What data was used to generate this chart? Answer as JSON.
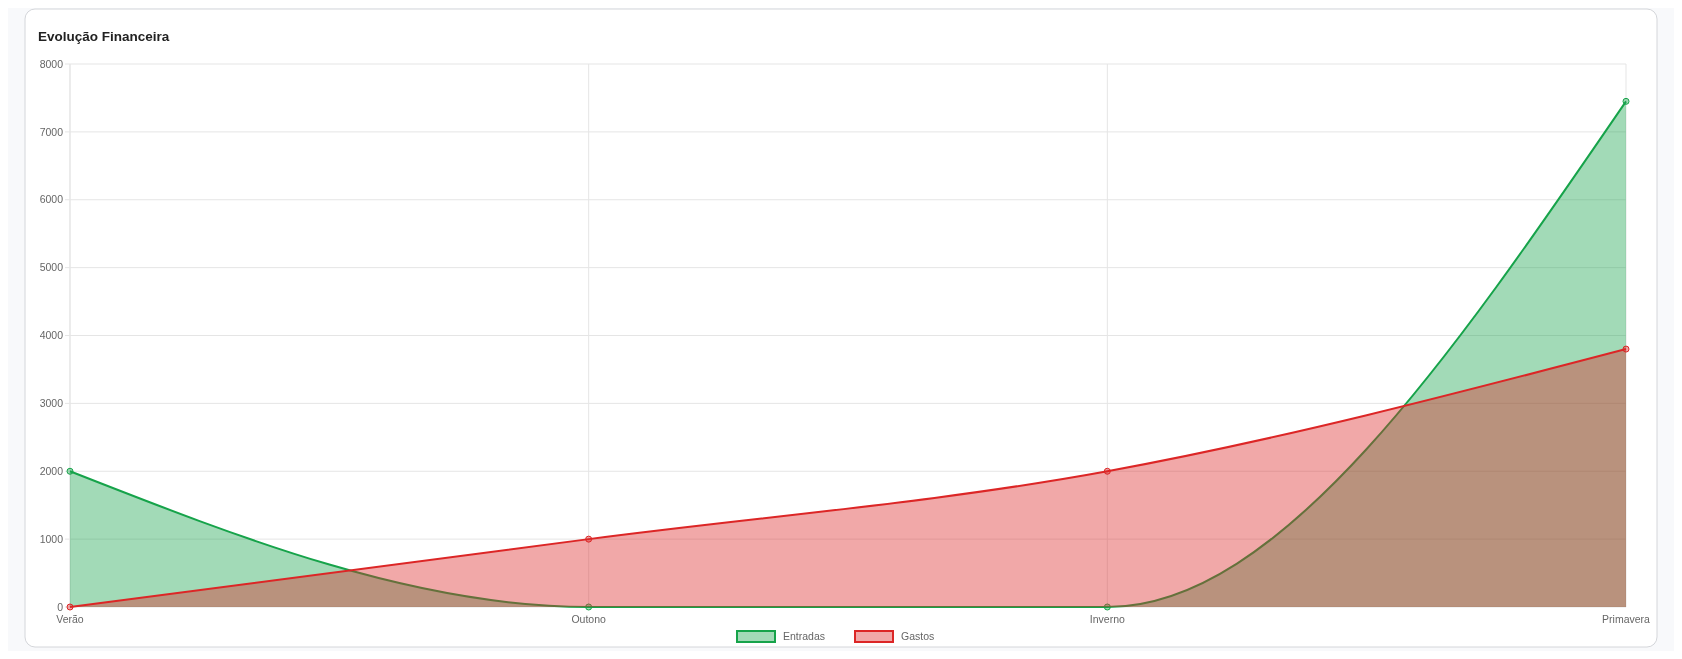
{
  "chart_data": {
    "type": "area",
    "title": "Evolução Financeira",
    "categories": [
      "Verão",
      "Outono",
      "Inverno",
      "Primavera"
    ],
    "series": [
      {
        "name": "Entradas",
        "color": "#16a34a",
        "values": [
          2000,
          0,
          0,
          7450
        ]
      },
      {
        "name": "Gastos",
        "color": "#dc2626",
        "values": [
          0,
          1000,
          2000,
          3800
        ]
      }
    ],
    "ylim": [
      0,
      8000
    ],
    "yticks": [
      0,
      1000,
      2000,
      3000,
      4000,
      5000,
      6000,
      7000,
      8000
    ],
    "grid": true,
    "legend": "bottom",
    "marker": "circle"
  }
}
